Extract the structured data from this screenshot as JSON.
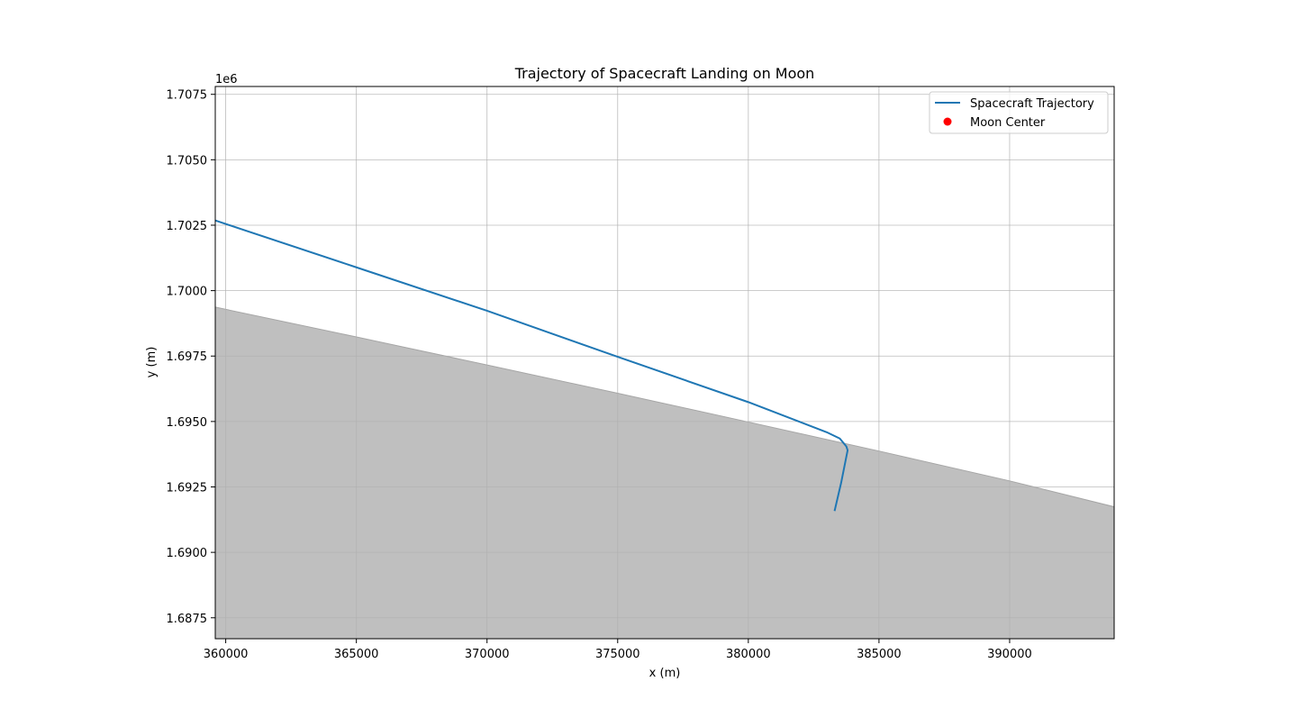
{
  "chart_data": {
    "type": "line",
    "title": "Trajectory of Spacecraft Landing on Moon",
    "xlabel": "x (m)",
    "ylabel": "y (m)",
    "y_offset_text": "1e6",
    "xlim": [
      359600,
      394000
    ],
    "ylim": [
      1686700,
      1707800
    ],
    "x_ticks": [
      360000,
      365000,
      370000,
      375000,
      380000,
      385000,
      390000
    ],
    "x_tick_labels": [
      "360000",
      "365000",
      "370000",
      "375000",
      "380000",
      "385000",
      "390000"
    ],
    "y_ticks": [
      1687500,
      1690000,
      1692500,
      1695000,
      1697500,
      1700000,
      1702500,
      1705000,
      1707500
    ],
    "y_tick_labels": [
      "1.6875",
      "1.6900",
      "1.6925",
      "1.6950",
      "1.6975",
      "1.7000",
      "1.7025",
      "1.7050",
      "1.7075"
    ],
    "grid": true,
    "legend_position": "upper right",
    "series": [
      {
        "name": "Spacecraft Trajectory",
        "kind": "line",
        "color": "#1f77b4",
        "x": [
          359600,
          365000,
          370000,
          375000,
          380000,
          383000,
          383500,
          383750,
          383800,
          383550,
          383300
        ],
        "y": [
          1702680,
          1700890,
          1699230,
          1697470,
          1695740,
          1694590,
          1694350,
          1694050,
          1693900,
          1692650,
          1691580
        ]
      },
      {
        "name": "Moon Center",
        "kind": "marker",
        "color": "#ff0000",
        "x": [],
        "y": []
      }
    ],
    "moon_surface": {
      "color": "#bfbfbf",
      "edge_color": "#a6a6a6",
      "x": [
        359600,
        365000,
        370000,
        375000,
        380000,
        385000,
        390000,
        394000
      ],
      "y": [
        1699370,
        1698230,
        1697160,
        1696080,
        1694980,
        1693870,
        1692730,
        1691740
      ]
    }
  }
}
